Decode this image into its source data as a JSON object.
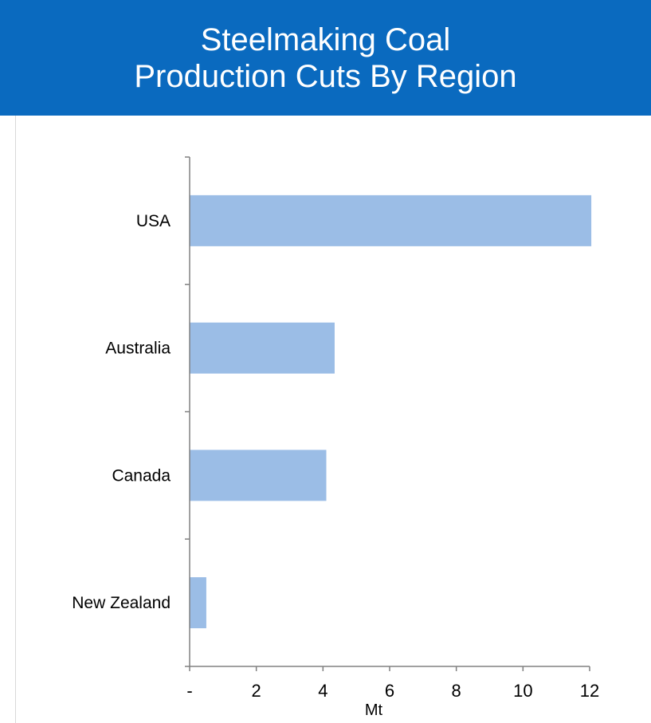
{
  "header": {
    "title_line1": "Steelmaking Coal",
    "title_line2": "Production Cuts By Region",
    "background_color": "#0a6abf"
  },
  "chart_data": {
    "type": "bar",
    "orientation": "horizontal",
    "title": "Steelmaking Coal Production Cuts By Region",
    "categories": [
      "USA",
      "Australia",
      "Canada",
      "New Zealand"
    ],
    "values": [
      12.05,
      4.35,
      4.1,
      0.5
    ],
    "xlabel": "Mt",
    "ylabel": "",
    "xlim": [
      0,
      12
    ],
    "x_ticks": [
      0,
      2,
      4,
      6,
      8,
      10,
      12
    ],
    "x_tick_labels": [
      "-",
      "2",
      "4",
      "6",
      "8",
      "10",
      "12"
    ],
    "grid": false,
    "legend": "none",
    "bar_color": "#9bbde6",
    "axis_color": "#808080"
  }
}
